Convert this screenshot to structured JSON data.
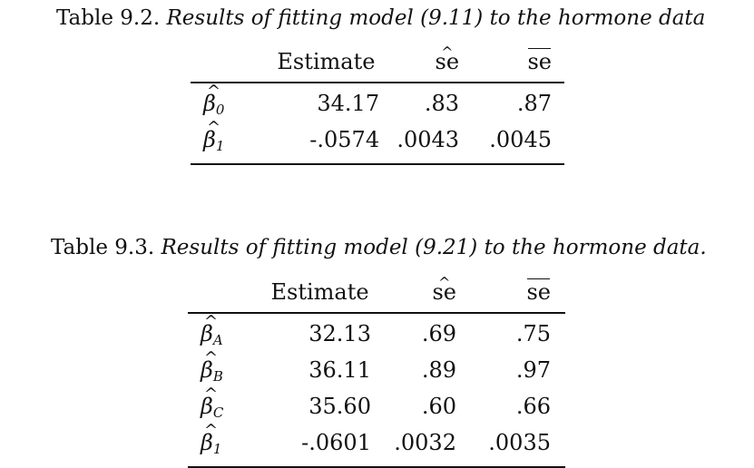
{
  "table_9_2": {
    "caption_lead": "Table 9.2.",
    "caption_desc": "Results of fitting model (9.11) to the hormone data",
    "headers": [
      "Estimate",
      "se",
      "se"
    ],
    "rows": [
      {
        "param": "β",
        "sub": "0",
        "estimate": "34.17",
        "se_hat": ".83",
        "se_bar": ".87"
      },
      {
        "param": "β",
        "sub": "1",
        "estimate": "-.0574",
        "se_hat": ".0043",
        "se_bar": ".0045"
      }
    ]
  },
  "table_9_3": {
    "caption_lead": "Table 9.3.",
    "caption_desc": "Results of fitting model (9.21) to the hormone data.",
    "headers": [
      "Estimate",
      "se",
      "se"
    ],
    "rows": [
      {
        "param": "β",
        "sub": "A",
        "estimate": "32.13",
        "se_hat": ".69",
        "se_bar": ".75"
      },
      {
        "param": "β",
        "sub": "B",
        "estimate": "36.11",
        "se_hat": ".89",
        "se_bar": ".97"
      },
      {
        "param": "β",
        "sub": "C",
        "estimate": "35.60",
        "se_hat": ".60",
        "se_bar": ".66"
      },
      {
        "param": "β",
        "sub": "1",
        "estimate": "-.0601",
        "se_hat": ".0032",
        "se_bar": ".0035"
      }
    ]
  }
}
